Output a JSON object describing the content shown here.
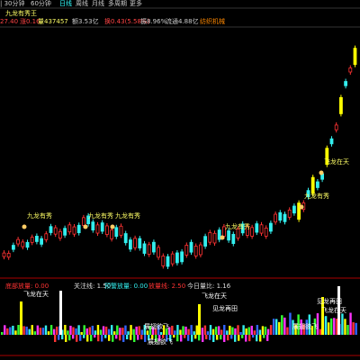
{
  "toolbar": {
    "items": [
      "| 30分钟",
      "60分钟",
      "日线",
      "周线",
      "月线",
      "多周期",
      "更多"
    ]
  },
  "stock": {
    "name": "九龙有秀王",
    "quote": [
      "27.40",
      "涨0.16",
      "量437457",
      "额3.53亿",
      "换0.43(5.58%)",
      "振8.96%",
      "流通4.88亿",
      "纺织机械"
    ]
  },
  "main_chart": {
    "labels": [
      "九龙有秀",
      "九龙有秀",
      "九龙有秀",
      "九龙有秀",
      "九龙有秀",
      "飞龙在天"
    ]
  },
  "indicator": {
    "fields": [
      "底部放量: 0.00",
      "关注线: 1.50",
      "预警放量: 0.00",
      "放量线: 2.50",
      "今日量比: 1.16"
    ],
    "annotations": [
      "飞龙在天",
      "飞龙在天",
      "见龙再田",
      "展翅欲飞",
      "展翅欲飞",
      "见龙再田",
      "飞龙在天",
      "展翅欲飞"
    ]
  }
}
